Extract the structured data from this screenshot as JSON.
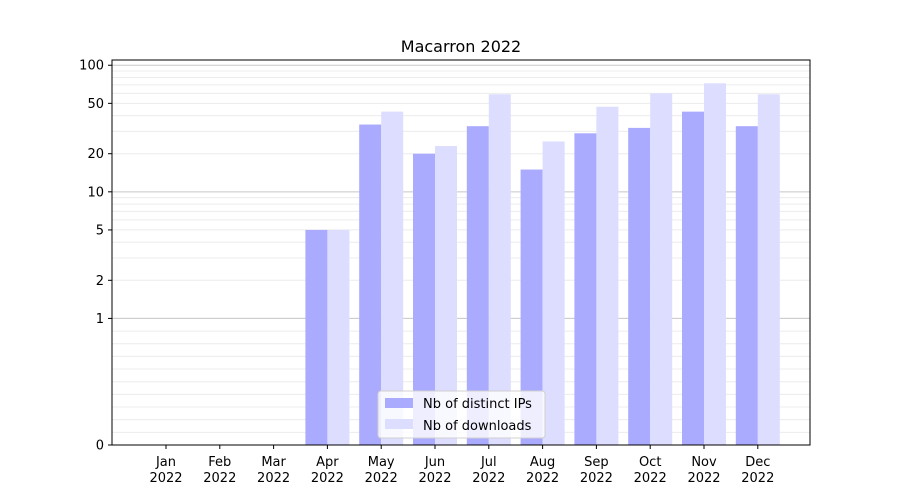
{
  "chart_data": {
    "type": "bar",
    "title": "Macarron 2022",
    "xlabel": "",
    "ylabel": "",
    "categories": [
      {
        "month": "Jan",
        "year": "2022"
      },
      {
        "month": "Feb",
        "year": "2022"
      },
      {
        "month": "Mar",
        "year": "2022"
      },
      {
        "month": "Apr",
        "year": "2022"
      },
      {
        "month": "May",
        "year": "2022"
      },
      {
        "month": "Jun",
        "year": "2022"
      },
      {
        "month": "Jul",
        "year": "2022"
      },
      {
        "month": "Aug",
        "year": "2022"
      },
      {
        "month": "Sep",
        "year": "2022"
      },
      {
        "month": "Oct",
        "year": "2022"
      },
      {
        "month": "Nov",
        "year": "2022"
      },
      {
        "month": "Dec",
        "year": "2022"
      }
    ],
    "series": [
      {
        "name": "Nb of distinct IPs",
        "color": "#aaaaff",
        "values": [
          0,
          0,
          0,
          5,
          34,
          20,
          33,
          15,
          29,
          32,
          43,
          33
        ]
      },
      {
        "name": "Nb of downloads",
        "color": "#ddddff",
        "values": [
          0,
          0,
          0,
          5,
          43,
          23,
          59,
          25,
          47,
          60,
          72,
          59
        ]
      }
    ],
    "y_scale": "symlog",
    "ylim": [
      0,
      110
    ],
    "y_ticks": [
      {
        "value": 0,
        "label": "0"
      },
      {
        "value": 1,
        "label": "1"
      },
      {
        "value": 2,
        "label": "2"
      },
      {
        "value": 5,
        "label": "5"
      },
      {
        "value": 10,
        "label": "10"
      },
      {
        "value": 20,
        "label": "20"
      },
      {
        "value": 50,
        "label": "50"
      },
      {
        "value": 100,
        "label": "100"
      }
    ],
    "grid": true,
    "legend_position": "bottom-center"
  }
}
